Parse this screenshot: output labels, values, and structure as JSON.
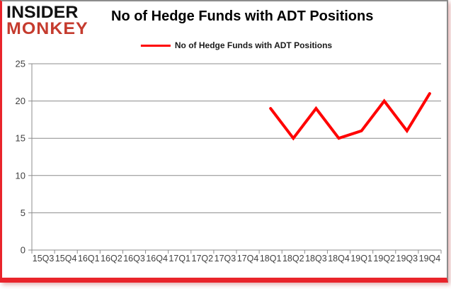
{
  "branding": {
    "logo_line1": "INSIDER",
    "logo_line2": "MONKEY",
    "logo_color_primary": "#111111",
    "logo_color_secondary": "#c53b2e"
  },
  "header": {
    "title": "No of Hedge Funds with ADT Positions"
  },
  "legend": {
    "label": "No of Hedge Funds with ADT Positions",
    "line_color": "#ff0000"
  },
  "chart_data": {
    "type": "line",
    "title": "No of Hedge Funds with ADT Positions",
    "categories": [
      "15Q3",
      "15Q4",
      "16Q1",
      "16Q2",
      "16Q3",
      "16Q4",
      "17Q1",
      "17Q2",
      "17Q3",
      "17Q4",
      "18Q1",
      "18Q2",
      "18Q3",
      "18Q4",
      "19Q1",
      "19Q2",
      "19Q3",
      "19Q4"
    ],
    "series": [
      {
        "name": "No of Hedge Funds with ADT Positions",
        "color": "#ff0000",
        "values": [
          null,
          null,
          null,
          null,
          null,
          null,
          null,
          null,
          null,
          null,
          19,
          15,
          19,
          15,
          16,
          20,
          16,
          21
        ]
      }
    ],
    "xlabel": "",
    "ylabel": "",
    "ylim": [
      0,
      25
    ],
    "yticks": [
      0,
      5,
      10,
      15,
      20,
      25
    ],
    "grid": true,
    "legend_position": "top",
    "grid_color": "#8c8c8c",
    "axis_color": "#8c8c8c",
    "tick_label_color": "#3f3f3f"
  },
  "frame": {
    "accent_border_color": "#e9242b",
    "neutral_border_color": "#8c8c8c",
    "background": "#ffffff"
  }
}
